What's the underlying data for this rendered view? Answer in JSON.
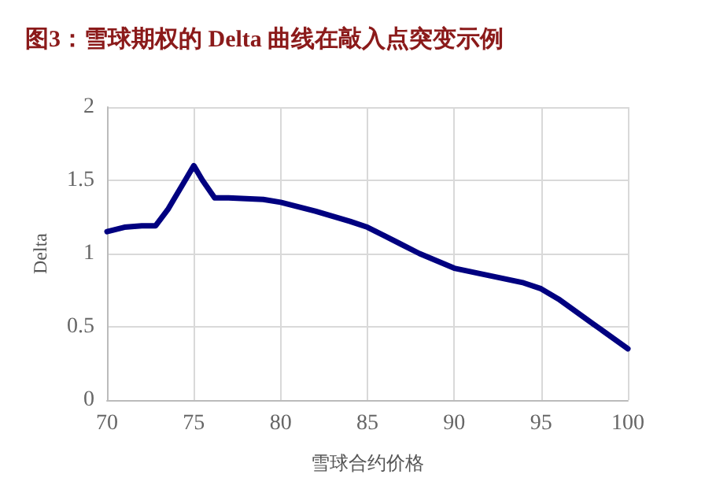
{
  "chart_data": {
    "type": "line",
    "title": "图3：雪球期权的 Delta 曲线在敲入点突变示例",
    "xlabel": "雪球合约价格",
    "ylabel": "Delta",
    "x": [
      70,
      71,
      72,
      72.8,
      73.5,
      74.5,
      75,
      75.5,
      76.2,
      77,
      79,
      80,
      82,
      84,
      85,
      86,
      88,
      90,
      92,
      94,
      95,
      96,
      98,
      100
    ],
    "series": [
      {
        "color": "#000080",
        "values": [
          1.15,
          1.18,
          1.19,
          1.19,
          1.3,
          1.5,
          1.6,
          1.5,
          1.38,
          1.38,
          1.37,
          1.35,
          1.29,
          1.22,
          1.18,
          1.12,
          1.0,
          0.9,
          0.85,
          0.8,
          0.76,
          0.69,
          0.52,
          0.35
        ]
      }
    ],
    "xlim": [
      70,
      100
    ],
    "xticks": [
      70,
      75,
      80,
      85,
      90,
      95,
      100
    ],
    "ylim": [
      0,
      2
    ],
    "yticks": [
      0,
      0.5,
      1,
      1.5,
      2
    ],
    "grid": true,
    "marker": "none",
    "line_style": "solid"
  }
}
